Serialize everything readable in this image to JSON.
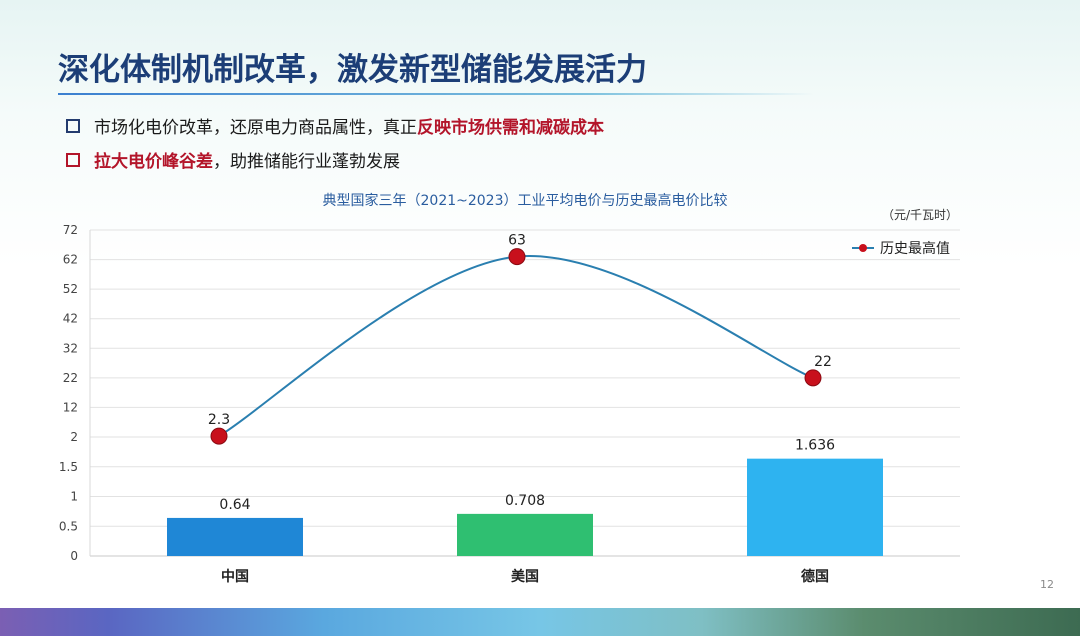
{
  "slide": {
    "title": "深化体制机制改革，激发新型储能发展活力",
    "bullets": [
      {
        "text": "市场化电价改革，还原电力商品属性，真正",
        "emphasis": "反映市场供需和减碳成本",
        "emphasis_first": false
      },
      {
        "text": "，助推储能行业蓬勃发展",
        "emphasis": "拉大电价峰谷差",
        "emphasis_first": true
      }
    ],
    "page_number": "12"
  },
  "chart_data": {
    "type": "bar+line",
    "title": "典型国家三年（2021~2023）工业平均电价与历史最高电价比较",
    "unit": "（元/千瓦时）",
    "categories": [
      "中国",
      "美国",
      "德国"
    ],
    "bar_series": {
      "values": [
        0.64,
        0.708,
        1.636
      ],
      "labels": [
        "0.64",
        "0.708",
        "1.636"
      ],
      "colors": [
        "#1f87d6",
        "#2fbf71",
        "#2eb3f0"
      ]
    },
    "line_series": {
      "name": "历史最高值",
      "values": [
        2.3,
        63,
        22
      ],
      "labels": [
        "2.3",
        "63",
        "22"
      ],
      "color": "#2a7fb0",
      "marker_color": "#c8101c"
    },
    "upper_axis": {
      "ticks": [
        2,
        12,
        22,
        32,
        42,
        52,
        62,
        72
      ],
      "ylim": [
        2,
        72
      ]
    },
    "lower_axis": {
      "ticks": [
        0,
        0.5,
        1,
        1.5
      ],
      "ylim": [
        0,
        2
      ]
    },
    "legend_position": "top-right",
    "grid": true
  }
}
